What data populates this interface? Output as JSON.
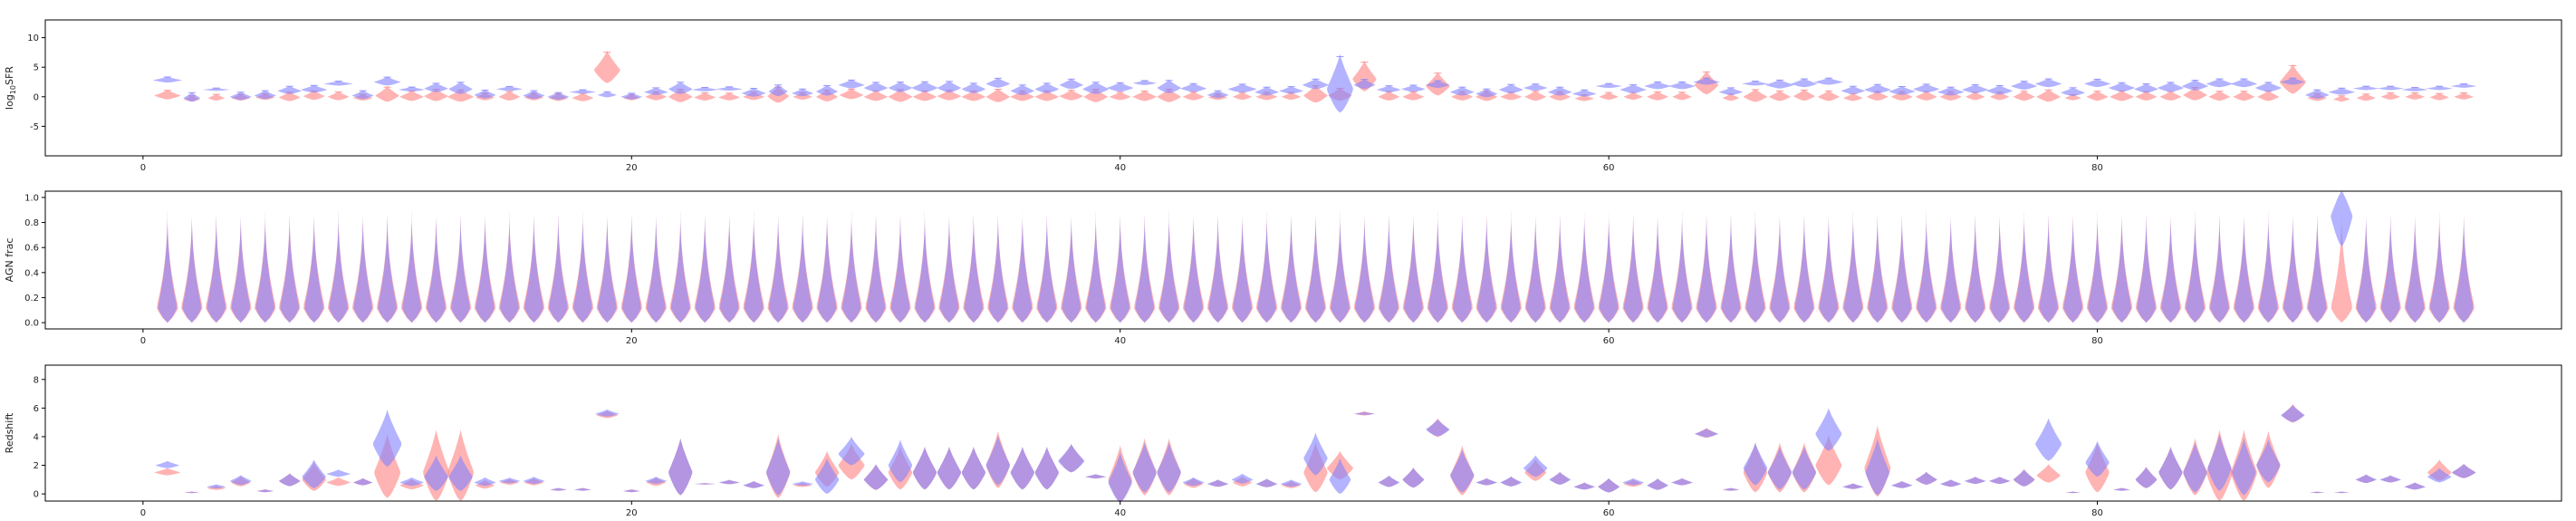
{
  "colors": {
    "series_a": "#ff8080",
    "series_b": "#8080ff"
  },
  "chart_data": [
    {
      "type": "violin",
      "ylabel": "log$_{10}$SFR",
      "ylabel_parts": {
        "main": "log",
        "sub": "10",
        "rest": "SFR"
      },
      "xlim": [
        -4,
        99
      ],
      "ylim": [
        -10,
        13
      ],
      "xticks": [
        0,
        20,
        40,
        60,
        80
      ],
      "yticks": [
        -5,
        0,
        5,
        10
      ],
      "series_a": {
        "centers": [
          0.2,
          -0.4,
          -0.2,
          -0.2,
          -0.1,
          -0.1,
          0.1,
          0.0,
          -0.2,
          0.2,
          0.0,
          0.1,
          0.0,
          -0.1,
          0.0,
          -0.1,
          -0.2,
          -0.2,
          4.5,
          -0.2,
          0.0,
          0.0,
          -0.1,
          -0.1,
          0.0,
          0.1,
          0.0,
          0.0,
          0.3,
          0.0,
          0.0,
          0.0,
          0.1,
          0.0,
          0.0,
          0.0,
          0.0,
          0.1,
          0.0,
          0.0,
          0.0,
          0.0,
          0.0,
          -0.1,
          0.0,
          0.0,
          0.0,
          0.2,
          0.2,
          3.0,
          0.0,
          0.0,
          1.8,
          0.0,
          0.0,
          0.0,
          0.0,
          0.0,
          -0.3,
          0.0,
          0.0,
          0.0,
          0.0,
          2.0,
          -0.2,
          0.0,
          0.0,
          0.1,
          0.0,
          -0.2,
          0.0,
          0.0,
          0.0,
          0.0,
          0.0,
          0.0,
          0.0,
          0.0,
          -0.2,
          0.0,
          0.0,
          0.0,
          0.0,
          0.3,
          0.0,
          0.0,
          0.0,
          2.5,
          -0.2,
          -0.4,
          -0.2,
          0.0,
          0.0,
          -0.1,
          0.0
        ],
        "spreads": [
          1.6,
          1.0,
          1.1,
          1.1,
          1.1,
          1.6,
          1.6,
          1.5,
          1.1,
          2.6,
          1.8,
          2.1,
          2.1,
          1.3,
          1.6,
          1.3,
          1.3,
          1.4,
          5.5,
          1.0,
          1.5,
          2.3,
          1.4,
          1.3,
          1.4,
          2.8,
          1.3,
          2.0,
          1.8,
          1.8,
          2.2,
          1.8,
          1.8,
          1.8,
          2.3,
          1.8,
          1.8,
          1.8,
          2.3,
          1.4,
          1.8,
          2.3,
          1.5,
          1.1,
          1.3,
          1.4,
          1.3,
          3.0,
          2.2,
          5.2,
          1.6,
          1.5,
          4.0,
          1.6,
          1.8,
          1.4,
          1.7,
          1.6,
          1.1,
          1.3,
          1.3,
          1.5,
          1.4,
          4.0,
          1.2,
          2.2,
          1.8,
          1.9,
          1.8,
          1.3,
          1.6,
          1.6,
          1.6,
          1.6,
          1.4,
          1.4,
          1.7,
          2.1,
          1.0,
          1.7,
          1.8,
          1.6,
          1.6,
          2.3,
          1.7,
          1.7,
          1.8,
          5.0,
          1.3,
          1.0,
          1.2,
          1.2,
          1.2,
          1.2,
          1.2
        ],
        "widths": [
          0.55,
          0.35,
          0.35,
          0.4,
          0.4,
          0.45,
          0.45,
          0.45,
          0.4,
          0.5,
          0.5,
          0.5,
          0.55,
          0.4,
          0.45,
          0.4,
          0.4,
          0.45,
          0.55,
          0.35,
          0.45,
          0.5,
          0.45,
          0.45,
          0.45,
          0.45,
          0.4,
          0.45,
          0.5,
          0.5,
          0.5,
          0.5,
          0.5,
          0.5,
          0.5,
          0.5,
          0.5,
          0.5,
          0.5,
          0.45,
          0.5,
          0.5,
          0.45,
          0.4,
          0.4,
          0.45,
          0.4,
          0.5,
          0.5,
          0.5,
          0.45,
          0.45,
          0.5,
          0.45,
          0.45,
          0.45,
          0.45,
          0.45,
          0.4,
          0.4,
          0.4,
          0.45,
          0.4,
          0.5,
          0.35,
          0.5,
          0.45,
          0.45,
          0.45,
          0.4,
          0.45,
          0.45,
          0.45,
          0.45,
          0.4,
          0.4,
          0.45,
          0.5,
          0.35,
          0.45,
          0.5,
          0.45,
          0.45,
          0.5,
          0.45,
          0.45,
          0.45,
          0.55,
          0.4,
          0.35,
          0.4,
          0.4,
          0.4,
          0.4,
          0.4
        ]
      },
      "series_b": {
        "centers": [
          2.8,
          -0.2,
          1.2,
          0.0,
          0.2,
          1.0,
          1.2,
          2.2,
          0.2,
          2.5,
          1.2,
          1.4,
          1.3,
          0.3,
          1.3,
          0.2,
          0.0,
          0.8,
          0.3,
          0.0,
          0.8,
          1.3,
          1.2,
          1.3,
          0.6,
          0.9,
          0.6,
          0.9,
          2.0,
          1.5,
          1.5,
          1.5,
          1.5,
          1.3,
          2.2,
          1.0,
          1.3,
          2.0,
          1.3,
          1.5,
          2.3,
          1.5,
          1.4,
          0.3,
          1.3,
          0.8,
          1.0,
          2.0,
          1.3,
          2.0,
          1.2,
          1.3,
          2.0,
          0.8,
          0.5,
          1.2,
          1.5,
          0.8,
          0.5,
          1.8,
          1.2,
          1.8,
          1.8,
          2.5,
          0.8,
          2.2,
          2.0,
          2.2,
          2.5,
          1.0,
          1.2,
          0.9,
          1.3,
          0.8,
          1.2,
          1.0,
          1.8,
          2.2,
          0.7,
          2.2,
          1.5,
          1.3,
          1.5,
          1.8,
          2.2,
          2.2,
          1.5,
          2.5,
          0.3,
          0.8,
          1.4,
          1.4,
          1.2,
          1.4,
          1.8
        ],
        "spreads": [
          1.0,
          1.6,
          0.5,
          1.4,
          1.5,
          1.4,
          1.3,
          0.8,
          1.5,
          1.5,
          0.8,
          1.6,
          2.1,
          1.5,
          0.8,
          1.5,
          1.3,
          0.7,
          1.0,
          1.1,
          1.3,
          2.1,
          0.7,
          0.7,
          1.5,
          2.0,
          1.3,
          1.8,
          1.5,
          1.7,
          1.8,
          1.9,
          2.0,
          1.8,
          1.7,
          1.8,
          1.8,
          1.8,
          2.1,
          1.6,
          0.8,
          2.3,
          1.5,
          1.3,
          1.5,
          1.5,
          1.3,
          1.8,
          10.0,
          1.7,
          1.2,
          1.2,
          1.3,
          1.5,
          1.5,
          1.6,
          1.2,
          1.5,
          1.2,
          0.8,
          1.5,
          1.3,
          1.3,
          1.2,
          1.3,
          0.8,
          1.5,
          1.5,
          1.2,
          1.4,
          1.6,
          1.5,
          1.5,
          1.5,
          1.5,
          1.6,
          1.5,
          1.5,
          1.5,
          1.4,
          1.6,
          1.6,
          1.7,
          1.8,
          1.5,
          1.5,
          1.7,
          1.2,
          1.6,
          1.2,
          0.7,
          0.7,
          0.7,
          0.7,
          0.7
        ],
        "widths": [
          0.6,
          0.35,
          0.55,
          0.45,
          0.45,
          0.5,
          0.55,
          0.6,
          0.45,
          0.55,
          0.55,
          0.5,
          0.5,
          0.45,
          0.55,
          0.45,
          0.45,
          0.55,
          0.4,
          0.45,
          0.5,
          0.5,
          0.55,
          0.55,
          0.5,
          0.4,
          0.45,
          0.45,
          0.55,
          0.5,
          0.5,
          0.55,
          0.5,
          0.5,
          0.5,
          0.5,
          0.5,
          0.5,
          0.55,
          0.55,
          0.5,
          0.5,
          0.55,
          0.45,
          0.6,
          0.5,
          0.5,
          0.55,
          0.55,
          0.45,
          0.5,
          0.5,
          0.5,
          0.5,
          0.45,
          0.5,
          0.5,
          0.5,
          0.5,
          0.55,
          0.55,
          0.55,
          0.55,
          0.55,
          0.5,
          0.55,
          0.6,
          0.55,
          0.6,
          0.5,
          0.55,
          0.55,
          0.55,
          0.55,
          0.55,
          0.55,
          0.55,
          0.55,
          0.5,
          0.55,
          0.55,
          0.5,
          0.55,
          0.55,
          0.55,
          0.55,
          0.55,
          0.5,
          0.5,
          0.55,
          0.55,
          0.55,
          0.55,
          0.55,
          0.55
        ]
      }
    },
    {
      "type": "violin",
      "ylabel": "AGN frac",
      "xlim": [
        -4,
        99
      ],
      "ylim": [
        -0.05,
        1.05
      ],
      "xticks": [
        0,
        20,
        40,
        60,
        80
      ],
      "yticks": [
        0.0,
        0.2,
        0.4,
        0.6,
        0.8,
        1.0
      ],
      "series_a": {
        "min": 0.0,
        "max": 0.9,
        "bulge": 0.12,
        "widths_scale": 0.45,
        "special": []
      },
      "series_b": {
        "min": 0.0,
        "max": 0.9,
        "bulge": 0.12,
        "widths_scale": 0.4,
        "special": [
          {
            "i": 89,
            "center": 0.85,
            "spread": 0.2
          }
        ]
      }
    },
    {
      "type": "violin",
      "ylabel": "Redshift",
      "xlim": [
        -4,
        99
      ],
      "ylim": [
        -0.5,
        9
      ],
      "xticks": [
        0,
        20,
        40,
        60,
        80
      ],
      "yticks": [
        0,
        2,
        4,
        6,
        8
      ],
      "series_a": {
        "centers": [
          1.5,
          0.1,
          0.4,
          0.8,
          0.2,
          0.9,
          1.0,
          0.8,
          0.8,
          1.5,
          0.6,
          1.5,
          1.5,
          0.6,
          0.8,
          0.8,
          0.3,
          0.3,
          5.5,
          0.2,
          0.8,
          1.5,
          0.7,
          0.8,
          0.6,
          1.5,
          0.6,
          1.5,
          2.0,
          1.0,
          1.5,
          1.5,
          1.5,
          1.5,
          2.0,
          1.5,
          1.5,
          2.3,
          1.2,
          1.0,
          1.5,
          1.5,
          0.7,
          0.7,
          0.8,
          0.7,
          0.6,
          1.5,
          1.8,
          5.6,
          0.8,
          1.0,
          4.5,
          1.3,
          0.8,
          0.8,
          1.5,
          1.0,
          0.5,
          0.5,
          0.7,
          0.6,
          0.8,
          4.2,
          0.3,
          1.5,
          1.5,
          1.5,
          2.0,
          0.5,
          1.8,
          0.6,
          1.0,
          0.7,
          0.9,
          0.9,
          1.0,
          1.3,
          0.1,
          1.5,
          0.3,
          1.0,
          1.5,
          1.5,
          1.5,
          1.5,
          2.0,
          5.5,
          0.1,
          0.1,
          1.0,
          1.0,
          0.5,
          1.5,
          1.5
        ],
        "spreads": [
          0.5,
          0.1,
          0.3,
          0.7,
          0.2,
          0.9,
          2.0,
          0.6,
          0.5,
          4.5,
          0.7,
          5.0,
          5.0,
          0.6,
          0.4,
          0.5,
          0.2,
          0.2,
          0.5,
          0.2,
          0.6,
          4.0,
          0.1,
          0.3,
          0.5,
          4.5,
          0.3,
          2.5,
          2.5,
          1.8,
          3.0,
          3.0,
          3.0,
          3.0,
          4.0,
          3.0,
          3.0,
          2.0,
          0.3,
          4.0,
          4.0,
          4.0,
          0.7,
          0.5,
          0.7,
          0.6,
          0.5,
          3.5,
          2.0,
          0.3,
          0.8,
          1.4,
          1.3,
          3.5,
          0.5,
          0.7,
          1.5,
          0.9,
          0.5,
          1.0,
          0.5,
          0.8,
          0.5,
          0.7,
          0.2,
          3.5,
          3.5,
          3.5,
          3.5,
          0.4,
          5.0,
          0.5,
          0.9,
          0.5,
          0.5,
          0.5,
          1.2,
          1.3,
          0.1,
          3.5,
          0.2,
          1.5,
          3.0,
          4.0,
          5.0,
          5.0,
          4.0,
          1.3,
          0.1,
          0.1,
          0.6,
          0.5,
          0.5,
          1.5,
          1.0
        ],
        "widths": [
          0.55,
          0.3,
          0.4,
          0.4,
          0.35,
          0.45,
          0.5,
          0.5,
          0.4,
          0.55,
          0.5,
          0.55,
          0.55,
          0.4,
          0.4,
          0.4,
          0.35,
          0.35,
          0.45,
          0.35,
          0.4,
          0.5,
          0.4,
          0.4,
          0.4,
          0.5,
          0.4,
          0.5,
          0.55,
          0.5,
          0.5,
          0.5,
          0.5,
          0.5,
          0.5,
          0.5,
          0.5,
          0.5,
          0.4,
          0.5,
          0.5,
          0.5,
          0.4,
          0.4,
          0.4,
          0.4,
          0.4,
          0.5,
          0.55,
          0.4,
          0.4,
          0.45,
          0.45,
          0.5,
          0.4,
          0.4,
          0.45,
          0.4,
          0.4,
          0.45,
          0.4,
          0.4,
          0.4,
          0.45,
          0.35,
          0.5,
          0.5,
          0.5,
          0.55,
          0.4,
          0.55,
          0.4,
          0.45,
          0.4,
          0.4,
          0.4,
          0.45,
          0.5,
          0.3,
          0.5,
          0.35,
          0.45,
          0.5,
          0.5,
          0.55,
          0.55,
          0.5,
          0.45,
          0.3,
          0.3,
          0.4,
          0.4,
          0.4,
          0.5,
          0.5
        ]
      },
      "series_b": {
        "centers": [
          2.0,
          0.1,
          0.5,
          0.9,
          0.2,
          0.9,
          1.2,
          1.4,
          0.8,
          3.5,
          0.8,
          1.2,
          1.2,
          0.8,
          0.9,
          0.9,
          0.3,
          0.3,
          5.6,
          0.2,
          0.9,
          1.5,
          0.7,
          0.8,
          0.6,
          1.5,
          0.7,
          1.0,
          2.8,
          1.0,
          2.0,
          1.5,
          1.5,
          1.5,
          2.0,
          1.5,
          1.5,
          2.3,
          1.2,
          0.8,
          1.5,
          1.5,
          0.8,
          0.7,
          1.0,
          0.7,
          0.7,
          2.5,
          1.0,
          5.6,
          0.8,
          1.0,
          4.5,
          1.3,
          0.8,
          0.8,
          1.8,
          1.0,
          0.5,
          0.5,
          0.8,
          0.6,
          0.8,
          4.2,
          0.3,
          1.8,
          1.5,
          1.5,
          4.2,
          0.5,
          1.5,
          0.6,
          1.0,
          0.7,
          0.9,
          0.9,
          1.0,
          3.5,
          0.1,
          2.2,
          0.3,
          1.0,
          1.5,
          1.5,
          1.8,
          1.5,
          2.0,
          5.5,
          0.1,
          0.1,
          1.0,
          1.0,
          0.5,
          1.2,
          1.5
        ],
        "spreads": [
          0.5,
          0.1,
          0.3,
          0.7,
          0.2,
          0.9,
          2.0,
          0.5,
          0.5,
          4.0,
          0.6,
          2.5,
          2.5,
          0.6,
          0.4,
          0.5,
          0.2,
          0.2,
          0.5,
          0.2,
          0.5,
          4.0,
          0.1,
          0.3,
          0.5,
          4.0,
          0.3,
          2.5,
          2.0,
          1.8,
          3.0,
          3.0,
          3.0,
          3.0,
          3.5,
          3.0,
          3.0,
          2.0,
          0.3,
          3.5,
          3.5,
          3.5,
          0.6,
          0.5,
          0.7,
          0.6,
          0.5,
          3.0,
          2.5,
          0.2,
          0.8,
          1.4,
          1.2,
          3.0,
          0.5,
          0.7,
          1.5,
          0.9,
          0.5,
          1.0,
          0.5,
          0.8,
          0.5,
          0.6,
          0.2,
          3.0,
          3.0,
          3.0,
          3.0,
          0.4,
          4.0,
          0.5,
          0.9,
          0.5,
          0.5,
          0.5,
          1.2,
          3.0,
          0.1,
          2.5,
          0.2,
          1.5,
          3.0,
          3.5,
          4.0,
          4.0,
          3.0,
          1.2,
          0.1,
          0.1,
          0.6,
          0.5,
          0.5,
          1.0,
          1.0
        ],
        "widths": [
          0.5,
          0.3,
          0.4,
          0.45,
          0.35,
          0.45,
          0.5,
          0.5,
          0.4,
          0.6,
          0.5,
          0.5,
          0.5,
          0.45,
          0.45,
          0.45,
          0.35,
          0.35,
          0.5,
          0.35,
          0.45,
          0.5,
          0.45,
          0.45,
          0.45,
          0.5,
          0.45,
          0.5,
          0.55,
          0.5,
          0.5,
          0.5,
          0.5,
          0.5,
          0.5,
          0.5,
          0.5,
          0.55,
          0.45,
          0.5,
          0.5,
          0.5,
          0.45,
          0.45,
          0.45,
          0.45,
          0.45,
          0.5,
          0.45,
          0.45,
          0.45,
          0.45,
          0.5,
          0.5,
          0.45,
          0.45,
          0.5,
          0.45,
          0.45,
          0.45,
          0.45,
          0.45,
          0.45,
          0.5,
          0.35,
          0.5,
          0.5,
          0.5,
          0.55,
          0.45,
          0.5,
          0.45,
          0.45,
          0.45,
          0.45,
          0.45,
          0.45,
          0.55,
          0.3,
          0.5,
          0.35,
          0.45,
          0.5,
          0.5,
          0.5,
          0.5,
          0.5,
          0.5,
          0.3,
          0.3,
          0.45,
          0.45,
          0.45,
          0.5,
          0.5
        ]
      }
    }
  ]
}
